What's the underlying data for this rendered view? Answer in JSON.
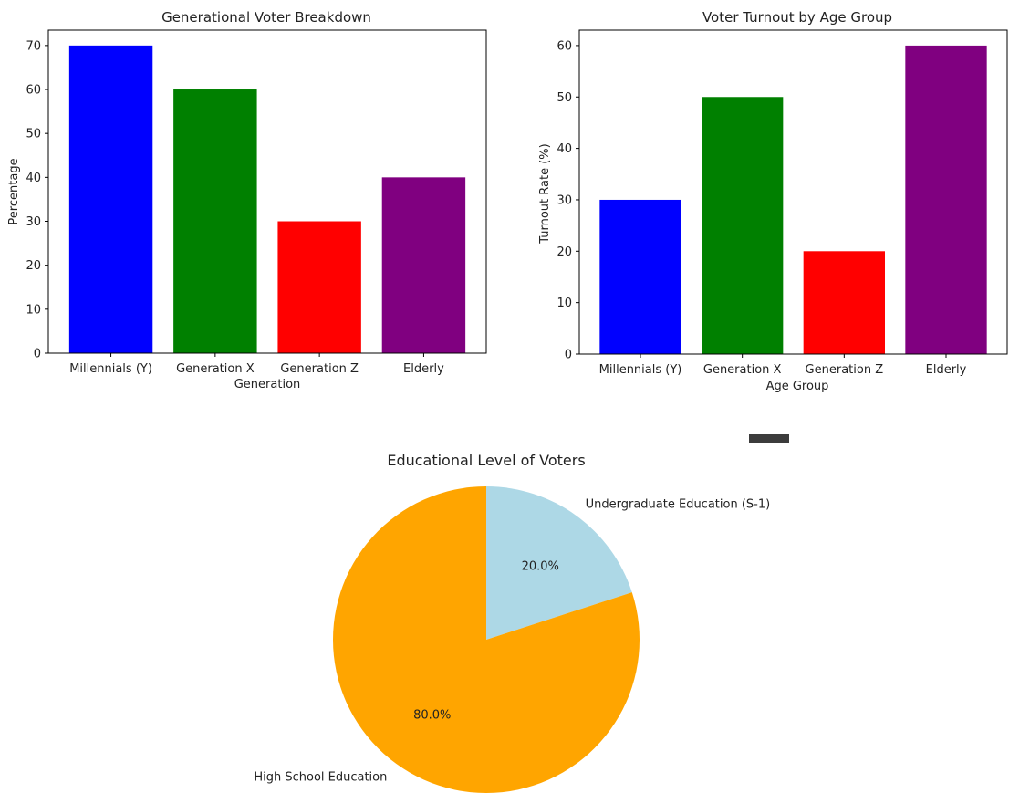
{
  "chart_data": [
    {
      "type": "bar",
      "title": "Generational Voter Breakdown",
      "xlabel": "Generation",
      "ylabel": "Percentage",
      "categories": [
        "Millennials (Y)",
        "Generation X",
        "Generation Z",
        "Elderly"
      ],
      "values": [
        70,
        60,
        30,
        40
      ],
      "colors": [
        "#0000ff",
        "#008000",
        "#ff0000",
        "#800080"
      ],
      "ylim": [
        0,
        73.5
      ],
      "yticks": [
        0,
        10,
        20,
        30,
        40,
        50,
        60,
        70
      ],
      "grid": false
    },
    {
      "type": "bar",
      "title": "Voter Turnout by Age Group",
      "xlabel": "Age Group",
      "ylabel": "Turnout Rate (%)",
      "categories": [
        "Millennials (Y)",
        "Generation X",
        "Generation Z",
        "Elderly"
      ],
      "values": [
        30,
        50,
        20,
        60
      ],
      "colors": [
        "#0000ff",
        "#008000",
        "#ff0000",
        "#800080"
      ],
      "ylim": [
        0,
        63
      ],
      "yticks": [
        0,
        10,
        20,
        30,
        40,
        50,
        60
      ],
      "grid": false
    },
    {
      "type": "pie",
      "title": "Educational Level of Voters",
      "labels": [
        "Undergraduate Education (S-1)",
        "High School Education"
      ],
      "values": [
        20,
        80
      ],
      "percent_labels": [
        "20.0%",
        "80.0%"
      ],
      "colors": [
        "#add8e6",
        "#ffa500"
      ],
      "start_angle": 90,
      "direction": "clockwise"
    }
  ]
}
